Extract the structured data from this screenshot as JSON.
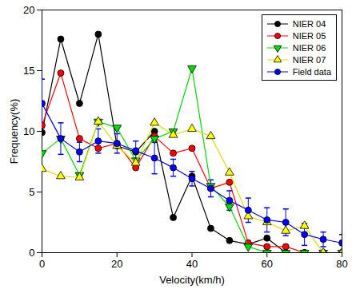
{
  "chart_data": {
    "type": "line",
    "x_label": "Velocity(km/h)",
    "y_label": "Frequency(%)",
    "x": [
      0,
      5,
      10,
      15,
      20,
      25,
      30,
      35,
      40,
      45,
      50,
      55,
      60,
      65,
      70,
      75,
      80
    ],
    "xlim": [
      0,
      80
    ],
    "xticks": [
      0,
      20,
      40,
      60,
      80
    ],
    "ylim": [
      0,
      20
    ],
    "yticks": [
      0,
      5,
      10,
      15,
      20
    ],
    "legend": "top-right",
    "series": [
      {
        "name": "NIER 04",
        "color": "#000000",
        "marker": "circle",
        "values": [
          9.9,
          17.6,
          12.3,
          18.0,
          8.8,
          8.3,
          10.0,
          2.9,
          6.3,
          2.0,
          1.0,
          0.7,
          1.2,
          0,
          0,
          0,
          0
        ]
      },
      {
        "name": "NIER 05",
        "color": "#ff0000",
        "marker": "circle",
        "values": [
          10.5,
          14.8,
          9.4,
          8.6,
          9.0,
          7.0,
          9.6,
          8.2,
          8.6,
          5.3,
          5.8,
          0.8,
          0.5,
          0.5,
          0,
          0,
          0
        ]
      },
      {
        "name": "NIER 06",
        "color": "#00dd00",
        "marker": "triangle-down",
        "values": [
          8.2,
          9.4,
          6.4,
          10.8,
          10.3,
          7.6,
          9.4,
          10.0,
          15.2,
          5.5,
          3.8,
          0.5,
          0,
          0,
          0,
          0,
          0
        ]
      },
      {
        "name": "NIER 07",
        "color": "#ffff00",
        "marker": "triangle",
        "values": [
          6.9,
          6.3,
          6.2,
          10.8,
          8.8,
          7.4,
          10.7,
          9.7,
          10.2,
          9.6,
          6.6,
          3.0,
          2.5,
          1.8,
          2.2,
          0,
          0
        ]
      },
      {
        "name": "Field data",
        "color": "#0000ff",
        "marker": "circle",
        "values": [
          12.3,
          9.4,
          8.3,
          9.2,
          9.0,
          8.4,
          7.8,
          7.0,
          6.1,
          5.3,
          4.3,
          3.5,
          2.7,
          2.5,
          1.5,
          1.1,
          0.8
        ],
        "error": [
          2.0,
          1.3,
          0.8,
          1.0,
          0.8,
          0.8,
          1.3,
          0.7,
          0.6,
          0.7,
          0.8,
          1.0,
          1.0,
          1.1,
          0.9,
          0.6,
          0.7
        ]
      }
    ]
  }
}
